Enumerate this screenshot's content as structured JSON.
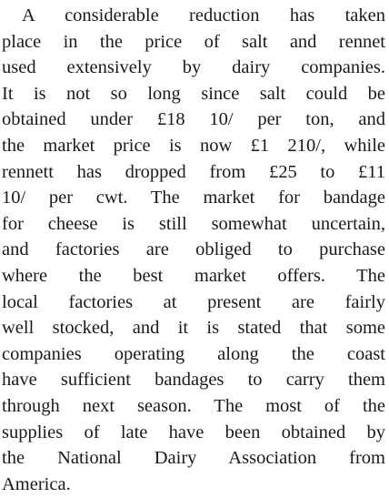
{
  "paragraph": {
    "lines": [
      "A considerable reduction has taken",
      "place in the price of salt and rennet",
      "used extensively by dairy companies.",
      "It is not so long since salt could be",
      "obtained under £18 10/ per ton, and",
      "the market price is now £1 210/, while",
      "rennett has dropped from £25 to £11",
      "10/ per cwt. The market for bandage",
      "for cheese is still somewhat uncertain,",
      "and factories are obliged to purchase",
      "where the best market offers. The",
      "local factories at present are fairly",
      "well stocked, and it is stated that some",
      "companies operating along the coast",
      "have sufficient bandages to carry them",
      "through next season. The most of the",
      "supplies of late have been obtained by",
      "the National Dairy Association from",
      "America."
    ]
  }
}
